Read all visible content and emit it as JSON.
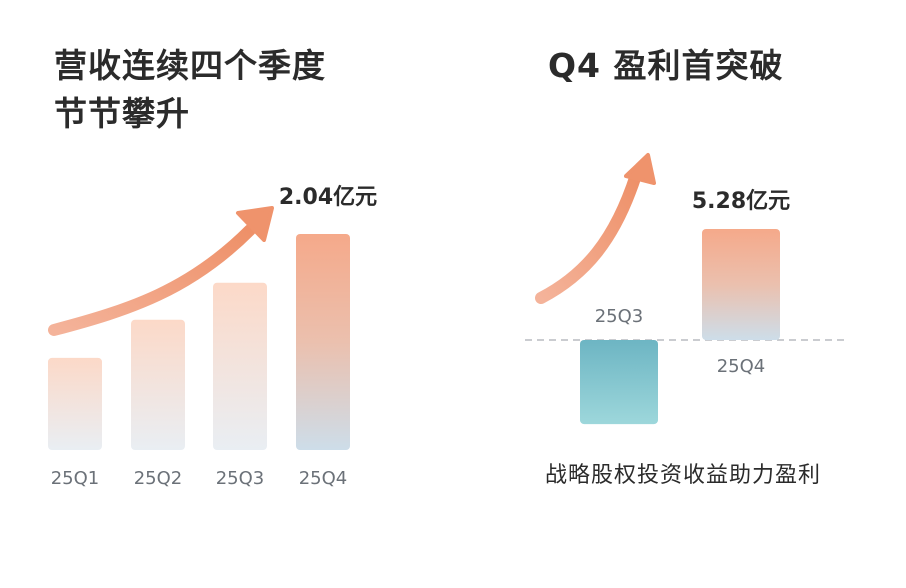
{
  "colors": {
    "bar_top": "#f4a98a",
    "bar_bottom": "#e8eef4",
    "q4_bottom": "#cfdde9",
    "arrow": "#ef9a76",
    "loss_top": "#6fb8c4",
    "loss_bottom": "#9ad6da",
    "text": "#2b2b2b",
    "label": "#6b7178",
    "baseline": "#b9bcc0"
  },
  "chart_data": [
    {
      "type": "bar",
      "title_lines": [
        "营收连续四个季度",
        "节节攀升"
      ],
      "categories": [
        "25Q1",
        "25Q2",
        "25Q3",
        "25Q4"
      ],
      "values": [
        0.87,
        1.23,
        1.58,
        2.04
      ],
      "data_labels": [
        null,
        null,
        null,
        "2.04亿元"
      ],
      "ylim": [
        0,
        2.04
      ],
      "trend_arrow": "up",
      "grid": false
    },
    {
      "type": "bar",
      "title": "Q4 盈利首突破",
      "categories": [
        "25Q3",
        "25Q4"
      ],
      "values": [
        -4.0,
        5.28
      ],
      "data_labels": [
        null,
        "5.28亿元"
      ],
      "zero_line": "dashed",
      "trend_arrow": "up",
      "caption": "战略股权投资收益助力盈利",
      "grid": false
    }
  ]
}
